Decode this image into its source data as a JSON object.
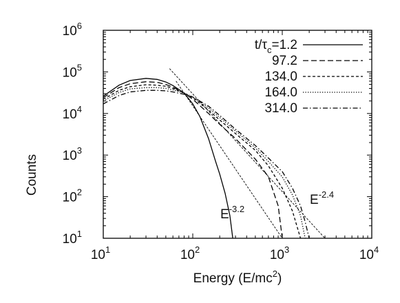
{
  "chart_data": {
    "type": "line",
    "xlabel": "Energy (E/mc²)",
    "xlabel_parts": {
      "main": "Energy (E/mc",
      "sup": "2",
      "tail": ")"
    },
    "ylabel": "Counts",
    "xscale": "log",
    "yscale": "log",
    "xlim": [
      10,
      10000
    ],
    "ylim": [
      10,
      1000000
    ],
    "x_ticks": [
      {
        "value": 10,
        "base": "10",
        "exp": "1"
      },
      {
        "value": 100,
        "base": "10",
        "exp": "2"
      },
      {
        "value": 1000,
        "base": "10",
        "exp": "3"
      },
      {
        "value": 10000,
        "base": "10",
        "exp": "4"
      }
    ],
    "y_ticks": [
      {
        "value": 10,
        "base": "10",
        "exp": "1"
      },
      {
        "value": 100,
        "base": "10",
        "exp": "2"
      },
      {
        "value": 1000,
        "base": "10",
        "exp": "3"
      },
      {
        "value": 10000,
        "base": "10",
        "exp": "4"
      },
      {
        "value": 100000,
        "base": "10",
        "exp": "5"
      },
      {
        "value": 1000000,
        "base": "10",
        "exp": "6"
      }
    ],
    "grid": false,
    "legend_position": "top-right",
    "legend_title_parts": {
      "pre": "t/τ",
      "sub": "c",
      "post": "=1.2"
    },
    "series": [
      {
        "name": "1.2",
        "dash": "solid",
        "points": [
          [
            10,
            26000
          ],
          [
            15,
            48000
          ],
          [
            20,
            62000
          ],
          [
            30,
            70000
          ],
          [
            40,
            66000
          ],
          [
            50,
            57000
          ],
          [
            60,
            47000
          ],
          [
            80,
            31000
          ],
          [
            100,
            17000
          ],
          [
            120,
            8500
          ],
          [
            150,
            2500
          ],
          [
            180,
            700
          ],
          [
            200,
            350
          ],
          [
            230,
            120
          ],
          [
            260,
            35
          ],
          [
            280,
            10
          ]
        ]
      },
      {
        "name": "97.2",
        "dash": "long-dash",
        "points": [
          [
            10,
            24000
          ],
          [
            15,
            42000
          ],
          [
            20,
            52000
          ],
          [
            30,
            58000
          ],
          [
            40,
            56000
          ],
          [
            50,
            50000
          ],
          [
            60,
            43000
          ],
          [
            80,
            31000
          ],
          [
            100,
            22000
          ],
          [
            150,
            10000
          ],
          [
            200,
            5500
          ],
          [
            300,
            2500
          ],
          [
            500,
            800
          ],
          [
            700,
            300
          ],
          [
            900,
            60
          ],
          [
            1000,
            10
          ]
        ]
      },
      {
        "name": "134.0",
        "dash": "short-dash",
        "points": [
          [
            10,
            22000
          ],
          [
            15,
            36000
          ],
          [
            20,
            44000
          ],
          [
            30,
            49000
          ],
          [
            40,
            48000
          ],
          [
            50,
            45000
          ],
          [
            60,
            40000
          ],
          [
            80,
            31000
          ],
          [
            100,
            24000
          ],
          [
            150,
            12000
          ],
          [
            200,
            7000
          ],
          [
            300,
            3300
          ],
          [
            500,
            1300
          ],
          [
            700,
            550
          ],
          [
            1000,
            160
          ],
          [
            1300,
            45
          ],
          [
            1600,
            10
          ]
        ]
      },
      {
        "name": "164.0",
        "dash": "dotted",
        "points": [
          [
            10,
            20000
          ],
          [
            15,
            32000
          ],
          [
            20,
            39000
          ],
          [
            30,
            42000
          ],
          [
            40,
            42000
          ],
          [
            50,
            40000
          ],
          [
            60,
            37000
          ],
          [
            80,
            31000
          ],
          [
            100,
            25000
          ],
          [
            150,
            13500
          ],
          [
            200,
            8000
          ],
          [
            300,
            3800
          ],
          [
            500,
            1500
          ],
          [
            700,
            700
          ],
          [
            1000,
            300
          ],
          [
            1300,
            110
          ],
          [
            1600,
            35
          ],
          [
            1800,
            10
          ]
        ]
      },
      {
        "name": "314.0",
        "dash": "dash-dot",
        "points": [
          [
            10,
            17000
          ],
          [
            15,
            27000
          ],
          [
            20,
            33000
          ],
          [
            30,
            36000
          ],
          [
            40,
            36000
          ],
          [
            50,
            35000
          ],
          [
            60,
            33000
          ],
          [
            80,
            29000
          ],
          [
            100,
            25000
          ],
          [
            150,
            15000
          ],
          [
            200,
            9000
          ],
          [
            300,
            4200
          ],
          [
            500,
            1700
          ],
          [
            700,
            850
          ],
          [
            1000,
            400
          ],
          [
            1300,
            160
          ],
          [
            1600,
            60
          ],
          [
            1800,
            25
          ],
          [
            2000,
            10
          ]
        ]
      }
    ],
    "power_law_lines": [
      {
        "label_base": "E",
        "label_exp": "-2.4",
        "points": [
          [
            55,
            120000
          ],
          [
            3000,
            10
          ]
        ]
      },
      {
        "label_base": "E",
        "label_exp": "-3.2",
        "points": [
          [
            65,
            60000
          ],
          [
            1000,
            10
          ]
        ]
      }
    ]
  }
}
